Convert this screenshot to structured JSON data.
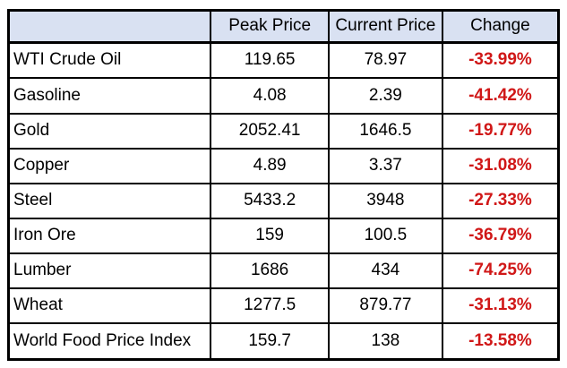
{
  "table": {
    "columns": [
      "",
      "Peak Price",
      "Current Price",
      "Change"
    ],
    "rows": [
      {
        "label": "WTI Crude Oil",
        "peak": "119.65",
        "current": "78.97",
        "change": "-33.99%"
      },
      {
        "label": "Gasoline",
        "peak": "4.08",
        "current": "2.39",
        "change": "-41.42%"
      },
      {
        "label": "Gold",
        "peak": "2052.41",
        "current": "1646.5",
        "change": "-19.77%"
      },
      {
        "label": "Copper",
        "peak": "4.89",
        "current": "3.37",
        "change": "-31.08%"
      },
      {
        "label": "Steel",
        "peak": "5433.2",
        "current": "3948",
        "change": "-27.33%"
      },
      {
        "label": "Iron Ore",
        "peak": "159",
        "current": "100.5",
        "change": "-36.79%"
      },
      {
        "label": "Lumber",
        "peak": "1686",
        "current": "434",
        "change": "-74.25%"
      },
      {
        "label": "Wheat",
        "peak": "1277.5",
        "current": "879.77",
        "change": "-31.13%"
      },
      {
        "label": "World Food Price Index",
        "peak": "159.7",
        "current": "138",
        "change": "-13.58%"
      }
    ]
  },
  "colors": {
    "background": "#ffffff",
    "header_fill": "#d9e1f2",
    "border": "#000000",
    "text": "#000000",
    "change_negative": "#d01717"
  },
  "chart_data": {
    "type": "table",
    "title": "",
    "columns": [
      "",
      "Peak Price",
      "Current Price",
      "Change"
    ],
    "rows": [
      [
        "WTI Crude Oil",
        119.65,
        78.97,
        "-33.99%"
      ],
      [
        "Gasoline",
        4.08,
        2.39,
        "-41.42%"
      ],
      [
        "Gold",
        2052.41,
        1646.5,
        "-19.77%"
      ],
      [
        "Copper",
        4.89,
        3.37,
        "-31.08%"
      ],
      [
        "Steel",
        5433.2,
        3948,
        "-27.33%"
      ],
      [
        "Iron Ore",
        159,
        100.5,
        "-36.79%"
      ],
      [
        "Lumber",
        1686,
        434,
        "-74.25%"
      ],
      [
        "Wheat",
        1277.5,
        879.77,
        "-31.13%"
      ],
      [
        "World Food Price Index",
        159.7,
        138,
        "-13.58%"
      ]
    ],
    "layout_hints": {
      "header_background": "#d9e1f2",
      "negative_change_color": "#d01717",
      "grid": true,
      "first_column_align": "left",
      "value_columns_align": "center"
    }
  }
}
